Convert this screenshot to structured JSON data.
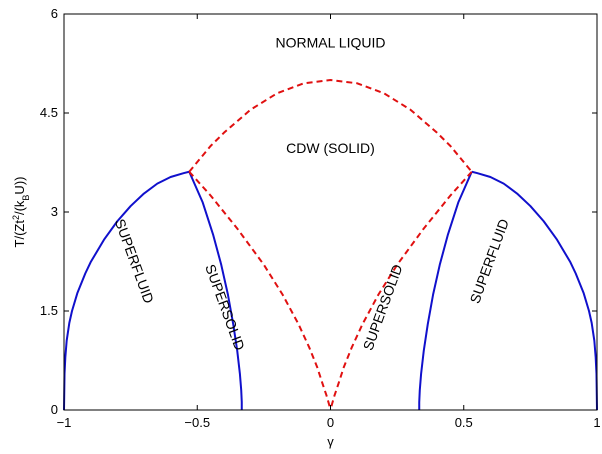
{
  "chart_data": {
    "type": "line",
    "xlabel": "γ",
    "ylabel": {
      "parts": [
        {
          "text": "T/(Zt",
          "shift": "none"
        },
        {
          "text": "2",
          "shift": "super"
        },
        {
          "text": "/(k",
          "shift": "none"
        },
        {
          "text": "B",
          "shift": "sub"
        },
        {
          "text": "U))",
          "shift": "none"
        }
      ]
    },
    "xlim": [
      -1,
      1
    ],
    "ylim": [
      0,
      6
    ],
    "xticks": [
      -1,
      -0.5,
      0,
      0.5,
      1
    ],
    "xtick_labels": [
      "−1",
      "−0.5",
      "0",
      "0.5",
      "1"
    ],
    "yticks": [
      0,
      1.5,
      3,
      4.5,
      6
    ],
    "ytick_labels": [
      "0",
      "1.5",
      "3",
      "4.5",
      "6"
    ],
    "grid": false,
    "colors": {
      "solid": "#1010cc",
      "dashed": "#e01010",
      "axes": "#000000"
    },
    "series": [
      {
        "style": "solid",
        "color": "#1010cc",
        "x": [
          -1,
          -0.998,
          -0.995,
          -0.99,
          -0.98,
          -0.97,
          -0.95,
          -0.92,
          -0.9,
          -0.85,
          -0.8,
          -0.75,
          -0.7,
          -0.65,
          -0.6,
          -0.55,
          -0.53
        ],
        "y": [
          0,
          0.55,
          0.8,
          1.05,
          1.32,
          1.5,
          1.77,
          2.07,
          2.24,
          2.58,
          2.86,
          3.09,
          3.28,
          3.43,
          3.53,
          3.59,
          3.61
        ]
      },
      {
        "style": "solid",
        "color": "#1010cc",
        "x": [
          -0.53,
          -0.48,
          -0.44,
          -0.41,
          -0.385,
          -0.365,
          -0.35,
          -0.34,
          -0.335,
          -0.333,
          -0.333
        ],
        "y": [
          3.61,
          3.15,
          2.65,
          2.2,
          1.75,
          1.3,
          0.9,
          0.55,
          0.3,
          0.12,
          0
        ]
      },
      {
        "style": "solid",
        "color": "#1010cc",
        "x": [
          1,
          0.998,
          0.995,
          0.99,
          0.98,
          0.97,
          0.95,
          0.92,
          0.9,
          0.85,
          0.8,
          0.75,
          0.7,
          0.65,
          0.6,
          0.55,
          0.53
        ],
        "y": [
          0,
          0.55,
          0.8,
          1.05,
          1.32,
          1.5,
          1.77,
          2.07,
          2.24,
          2.58,
          2.86,
          3.09,
          3.28,
          3.43,
          3.53,
          3.59,
          3.61
        ]
      },
      {
        "style": "solid",
        "color": "#1010cc",
        "x": [
          0.53,
          0.48,
          0.44,
          0.41,
          0.385,
          0.365,
          0.35,
          0.34,
          0.335,
          0.333,
          0.333
        ],
        "y": [
          3.61,
          3.15,
          2.65,
          2.2,
          1.75,
          1.3,
          0.9,
          0.55,
          0.3,
          0.12,
          0
        ]
      },
      {
        "style": "dashed",
        "color": "#e01010",
        "x": [
          -0.53,
          -0.45,
          -0.4,
          -0.3,
          -0.2,
          -0.1,
          0,
          0.1,
          0.2,
          0.3,
          0.4,
          0.45,
          0.53
        ],
        "y": [
          3.61,
          4.0,
          4.2,
          4.55,
          4.8,
          4.95,
          5.0,
          4.95,
          4.8,
          4.55,
          4.2,
          4.0,
          3.61
        ]
      },
      {
        "style": "dashed",
        "color": "#e01010",
        "x": [
          -0.53,
          -0.45,
          -0.35,
          -0.25,
          -0.18,
          -0.12,
          -0.08,
          -0.05,
          -0.03,
          -0.015,
          -0.005,
          0
        ],
        "y": [
          3.61,
          3.25,
          2.75,
          2.2,
          1.75,
          1.3,
          0.95,
          0.65,
          0.4,
          0.22,
          0.08,
          0
        ]
      },
      {
        "style": "dashed",
        "color": "#e01010",
        "x": [
          0.53,
          0.45,
          0.35,
          0.25,
          0.18,
          0.12,
          0.08,
          0.05,
          0.03,
          0.015,
          0.005,
          0
        ],
        "y": [
          3.61,
          3.25,
          2.75,
          2.2,
          1.75,
          1.3,
          0.95,
          0.65,
          0.4,
          0.22,
          0.08,
          0
        ]
      }
    ],
    "annotations": [
      {
        "text": "NORMAL LIQUID",
        "x": 0.0,
        "y": 5.55,
        "rotation": 0
      },
      {
        "text": "CDW (SOLID)",
        "x": 0.0,
        "y": 3.95,
        "rotation": 0
      },
      {
        "text": "SUPERFLUID",
        "x": -0.74,
        "y": 2.25,
        "rotation": 70
      },
      {
        "text": "SUPERSOLID",
        "x": -0.4,
        "y": 1.55,
        "rotation": 70
      },
      {
        "text": "SUPERSOLID",
        "x": 0.2,
        "y": 1.55,
        "rotation": -70
      },
      {
        "text": "SUPERFLUID",
        "x": 0.6,
        "y": 2.25,
        "rotation": -70
      }
    ]
  }
}
